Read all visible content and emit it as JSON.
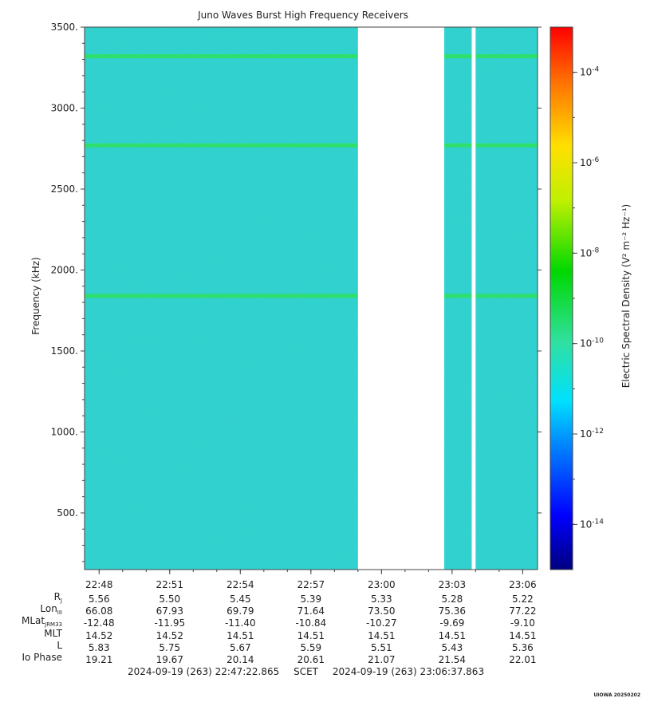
{
  "chart_data": {
    "type": "heatmap",
    "title": "Juno Waves Burst High Frequency Receivers",
    "ylabel": "Frequency (kHz)",
    "ylim": [
      150,
      3500
    ],
    "yticks": [
      "500.",
      "1000.",
      "1500.",
      "2000.",
      "2500.",
      "3000.",
      "3500."
    ],
    "xticks": [
      "22:48",
      "22:51",
      "22:54",
      "22:57",
      "23:00",
      "23:03",
      "23:06"
    ],
    "colorbar": {
      "label": "Electric Spectral Density (V² m⁻² Hz⁻¹)",
      "scale": "log",
      "range": [
        1e-15,
        0.001
      ],
      "ticks": [
        "10-4",
        "10-6",
        "10-8",
        "10-10",
        "10-12",
        "10-14"
      ]
    },
    "data_gaps": [
      {
        "start": "22:59:00",
        "end": "23:02:40"
      },
      {
        "start": "23:03:50",
        "end": "23:04:00"
      }
    ],
    "emission_lines_khz": [
      3320,
      2770,
      1840
    ],
    "background_level": "~1e-12",
    "colors": {
      "background": "#2fd6c9",
      "line": "#30e060"
    }
  },
  "ephemeris": {
    "rows": [
      {
        "label": "R",
        "sub": "J",
        "values": [
          "5.56",
          "5.50",
          "5.45",
          "5.39",
          "5.33",
          "5.28",
          "5.22"
        ]
      },
      {
        "label": "Lon",
        "sub": "III",
        "values": [
          "66.08",
          "67.93",
          "69.79",
          "71.64",
          "73.50",
          "75.36",
          "77.22"
        ]
      },
      {
        "label": "MLat",
        "sub": "JRM33",
        "values": [
          "-12.48",
          "-11.95",
          "-11.40",
          "-10.84",
          "-10.27",
          "-9.69",
          "-9.10"
        ]
      },
      {
        "label": "MLT",
        "sub": "",
        "values": [
          "14.52",
          "14.52",
          "14.51",
          "14.51",
          "14.51",
          "14.51",
          "14.51"
        ]
      },
      {
        "label": "L",
        "sub": "",
        "values": [
          "5.83",
          "5.75",
          "5.67",
          "5.59",
          "5.51",
          "5.43",
          "5.36"
        ]
      },
      {
        "label": "Io Phase",
        "sub": "",
        "values": [
          "19.21",
          "19.67",
          "20.14",
          "20.61",
          "21.07",
          "21.54",
          "22.01"
        ]
      }
    ]
  },
  "footer": {
    "start": "2024-09-19 (263) 22:47:22.865",
    "scet": "SCET",
    "end": "2024-09-19 (263) 23:06:37.863"
  },
  "credit": "UIOWA 20250202"
}
